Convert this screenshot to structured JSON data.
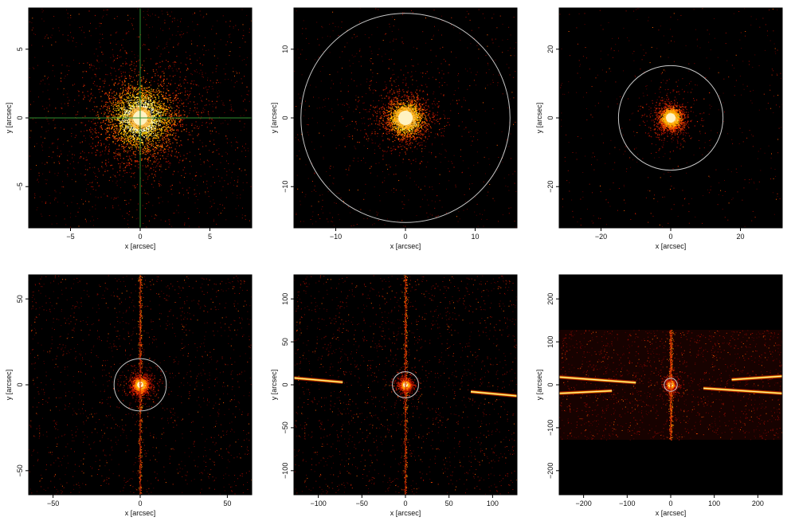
{
  "chart_data": [
    {
      "type": "heatmap",
      "xlabel": "x [arcsec]",
      "ylabel": "y [arcsec]",
      "xlim": [
        -8,
        8
      ],
      "ylim": [
        -8,
        8
      ],
      "xticks": [
        -5,
        0,
        5
      ],
      "yticks": [
        -5,
        0,
        5
      ],
      "source_center": [
        0,
        0
      ],
      "crosshair": true,
      "crosshair_color": "#2f8f2f",
      "circle_radius": null,
      "streaks": [],
      "has_vertical_readout_streak": false,
      "colormap": [
        "#000000",
        "#7a0000",
        "#ff3c00",
        "#ffc000",
        "#ffffe6"
      ]
    },
    {
      "type": "heatmap",
      "xlabel": "x [arcsec]",
      "ylabel": "y [arcsec]",
      "xlim": [
        -16,
        16
      ],
      "ylim": [
        -16,
        16
      ],
      "xticks": [
        -10,
        0,
        10
      ],
      "yticks": [
        -10,
        0,
        10
      ],
      "source_center": [
        0,
        0
      ],
      "crosshair": false,
      "circle_radius": 15,
      "circle_color": "#c8c8c8",
      "streaks": [],
      "has_vertical_readout_streak": false
    },
    {
      "type": "heatmap",
      "xlabel": "x [arcsec]",
      "ylabel": "y [arcsec]",
      "xlim": [
        -32,
        32
      ],
      "ylim": [
        -32,
        32
      ],
      "xticks": [
        -20,
        0,
        20
      ],
      "yticks": [
        -20,
        0,
        20
      ],
      "source_center": [
        0,
        0
      ],
      "crosshair": false,
      "circle_radius": 15,
      "circle_color": "#c8c8c8",
      "streaks": [],
      "has_vertical_readout_streak": false
    },
    {
      "type": "heatmap",
      "xlabel": "x [arcsec]",
      "ylabel": "y [arcsec]",
      "xlim": [
        -64,
        64
      ],
      "ylim": [
        -64,
        64
      ],
      "xticks": [
        -50,
        0,
        50
      ],
      "yticks": [
        -50,
        0,
        50
      ],
      "source_center": [
        0,
        0
      ],
      "crosshair": false,
      "circle_radius": 15,
      "circle_color": "#c8c8c8",
      "streaks": [],
      "has_vertical_readout_streak": true
    },
    {
      "type": "heatmap",
      "xlabel": "x [arcsec]",
      "ylabel": "y [arcsec]",
      "xlim": [
        -128,
        128
      ],
      "ylim": [
        -128,
        128
      ],
      "xticks": [
        -100,
        -50,
        0,
        50,
        100
      ],
      "yticks": [
        -100,
        -50,
        0,
        50,
        100
      ],
      "source_center": [
        0,
        0
      ],
      "crosshair": false,
      "circle_radius": 15,
      "circle_color": "#c8c8c8",
      "streaks": [
        {
          "from": [
            -128,
            8
          ],
          "to": [
            -72,
            3
          ]
        },
        {
          "from": [
            75,
            -8
          ],
          "to": [
            128,
            -13
          ]
        }
      ],
      "has_vertical_readout_streak": true
    },
    {
      "type": "heatmap",
      "xlabel": "x [arcsec]",
      "ylabel": "y [arcsec]",
      "xlim": [
        -256,
        256
      ],
      "ylim": [
        -256,
        256
      ],
      "xticks": [
        -200,
        -100,
        0,
        100,
        200
      ],
      "yticks": [
        -200,
        -100,
        0,
        100,
        200
      ],
      "source_center": [
        0,
        0
      ],
      "crosshair": false,
      "circle_radius": 15,
      "circle_color": "#c8c8c8",
      "exposure_region_y": [
        -128,
        128
      ],
      "streaks": [
        {
          "from": [
            -256,
            18
          ],
          "to": [
            -80,
            5
          ]
        },
        {
          "from": [
            -256,
            -20
          ],
          "to": [
            -135,
            -14
          ]
        },
        {
          "from": [
            140,
            12
          ],
          "to": [
            256,
            20
          ]
        },
        {
          "from": [
            75,
            -8
          ],
          "to": [
            256,
            -20
          ]
        }
      ],
      "has_vertical_readout_streak": true
    }
  ]
}
